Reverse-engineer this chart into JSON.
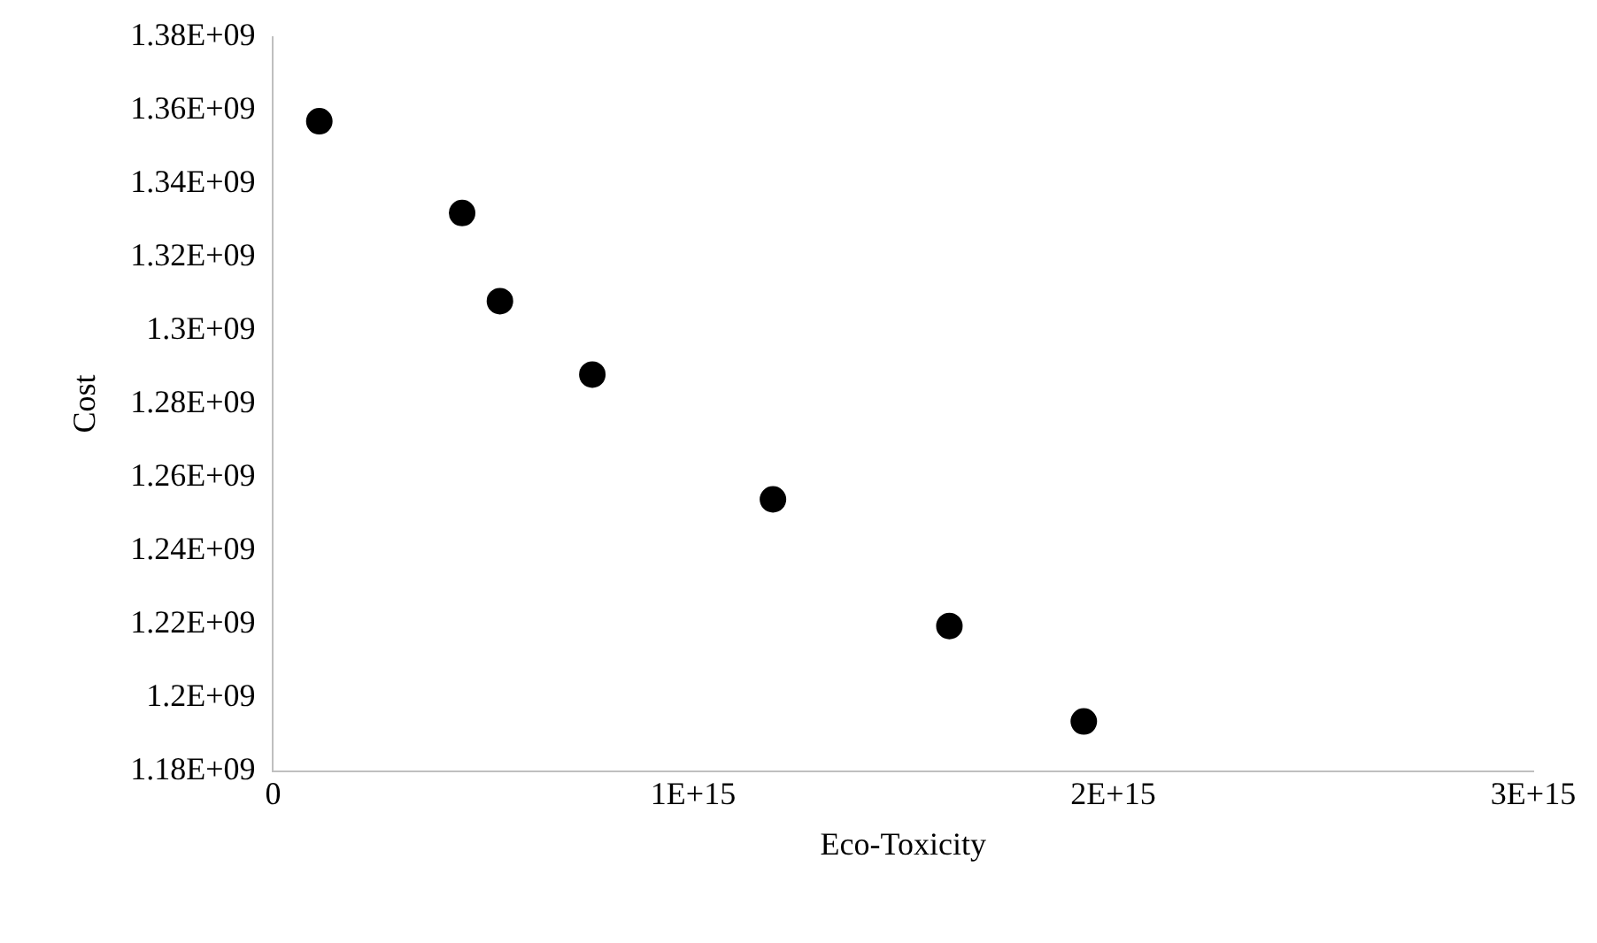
{
  "chart_data": {
    "type": "scatter",
    "xlabel": "Eco-Toxicity",
    "ylabel": "Cost",
    "x": [
      110000000000000.0,
      450000000000000.0,
      540000000000000.0,
      760000000000000.0,
      1190000000000000.0,
      1610000000000000.0,
      1930000000000000.0
    ],
    "series": [
      {
        "color": "#000000",
        "values": [
          1357000000.0,
          1332000000.0,
          1308000000.0,
          1288000000.0,
          1254000000.0,
          1219500000.0,
          1193500000.0
        ]
      }
    ],
    "xlim": [
      0,
      3000000000000000.0
    ],
    "xticks": [
      0,
      {
        "value": 1000000000000000.0,
        "label": "1E+15"
      },
      {
        "value": 2000000000000000.0,
        "label": "2E+15"
      },
      {
        "value": 3000000000000000.0,
        "label": "3E+15"
      }
    ],
    "ylim": [
      1180000000.0,
      1380000000.0
    ],
    "yticks": [
      {
        "value": 1180000000.0,
        "label": "1.18E+09"
      },
      {
        "value": 1200000000.0,
        "label": "1.2E+09"
      },
      {
        "value": 1220000000.0,
        "label": "1.22E+09"
      },
      {
        "value": 1240000000.0,
        "label": "1.24E+09"
      },
      {
        "value": 1260000000.0,
        "label": "1.26E+09"
      },
      {
        "value": 1280000000.0,
        "label": "1.28E+09"
      },
      {
        "value": 1300000000.0,
        "label": "1.3E+09"
      },
      {
        "value": 1320000000.0,
        "label": "1.32E+09"
      },
      {
        "value": 1340000000.0,
        "label": "1.34E+09"
      },
      {
        "value": 1360000000.0,
        "label": "1.36E+09"
      },
      {
        "value": 1380000000.0,
        "label": "1.38E+09"
      }
    ],
    "grid": false,
    "legend": false,
    "marker": "circle"
  }
}
